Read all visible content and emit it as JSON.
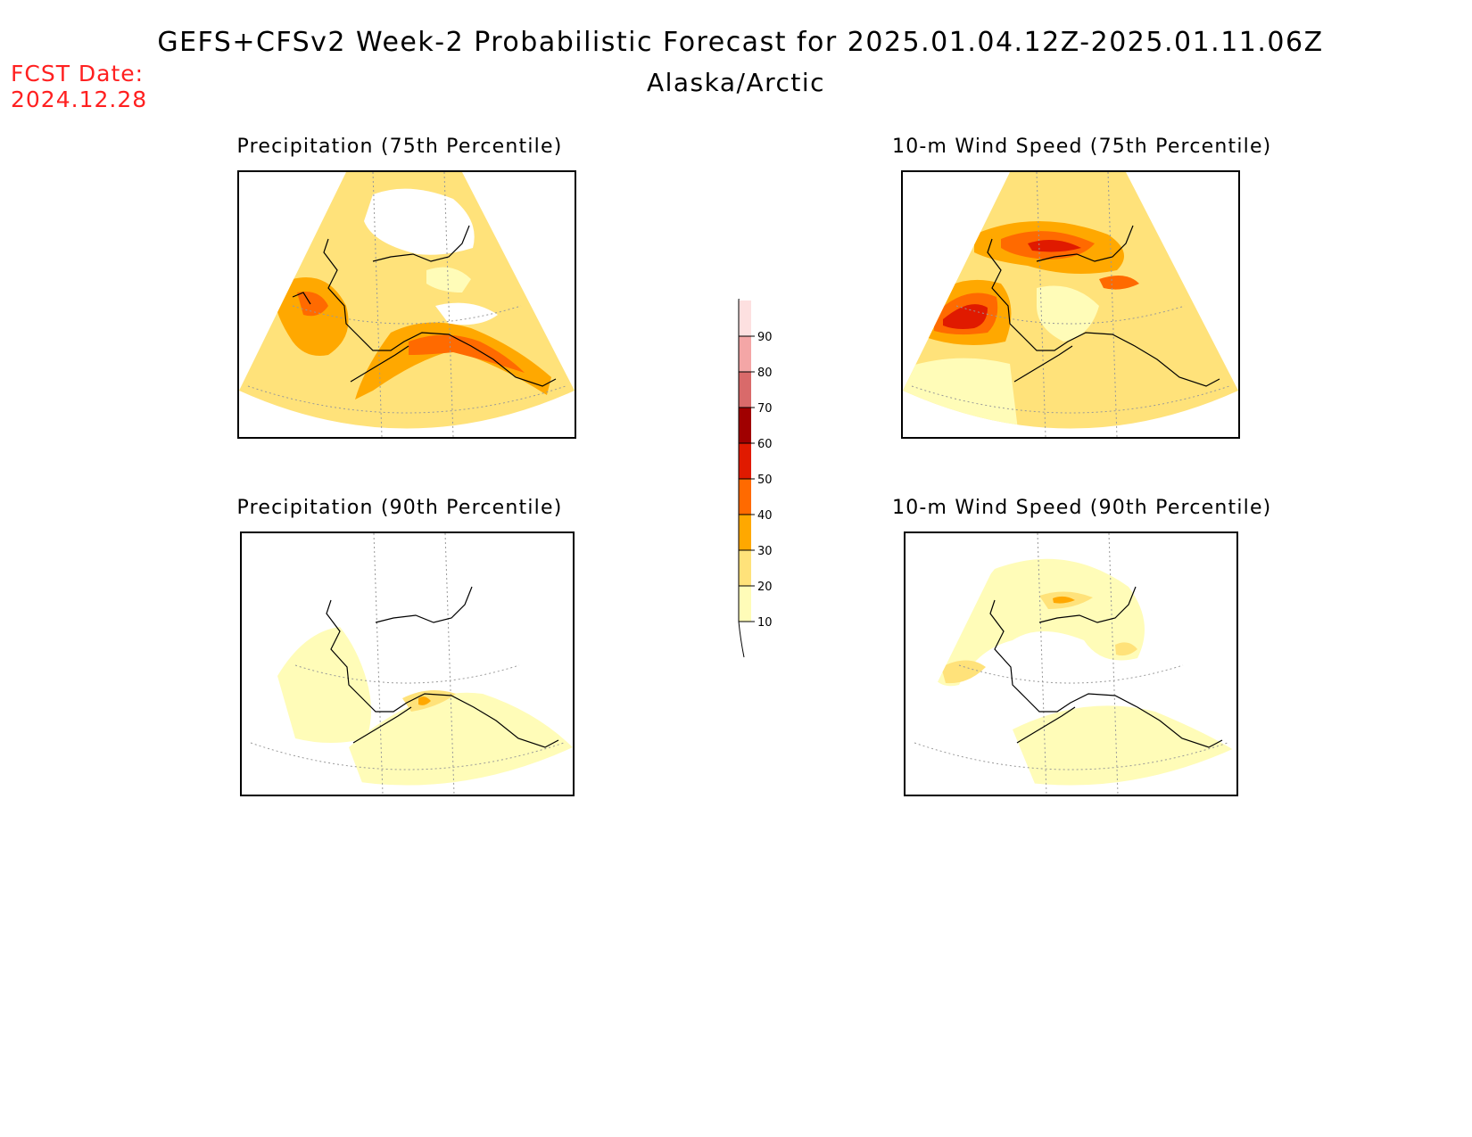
{
  "header": {
    "title": "GEFS+CFSv2 Week-2 Probabilistic Forecast for 2025.01.04.12Z-2025.01.11.06Z",
    "subtitle": "Alaska/Arctic",
    "fcst_label": "FCST Date:",
    "fcst_date": "2024.12.28"
  },
  "panels": [
    {
      "id": "precip75",
      "title": "Precipitation (75th Percentile)",
      "base_level": 20
    },
    {
      "id": "wind75",
      "title": "10-m Wind Speed (75th Percentile)",
      "base_level": 20
    },
    {
      "id": "precip90",
      "title": "Precipitation (90th Percentile)",
      "base_level": 10
    },
    {
      "id": "wind90",
      "title": "10-m Wind Speed (90th Percentile)",
      "base_level": 10
    }
  ],
  "colorbar": {
    "levels": [
      "10",
      "20",
      "30",
      "40",
      "50",
      "60",
      "70",
      "80",
      "90"
    ],
    "colors": [
      "#fffcb8",
      "#ffe27a",
      "#ffa800",
      "#ff6a00",
      "#e01a00",
      "#a00000",
      "#d96a6a",
      "#f4a6a6",
      "#fde0e0"
    ]
  }
}
